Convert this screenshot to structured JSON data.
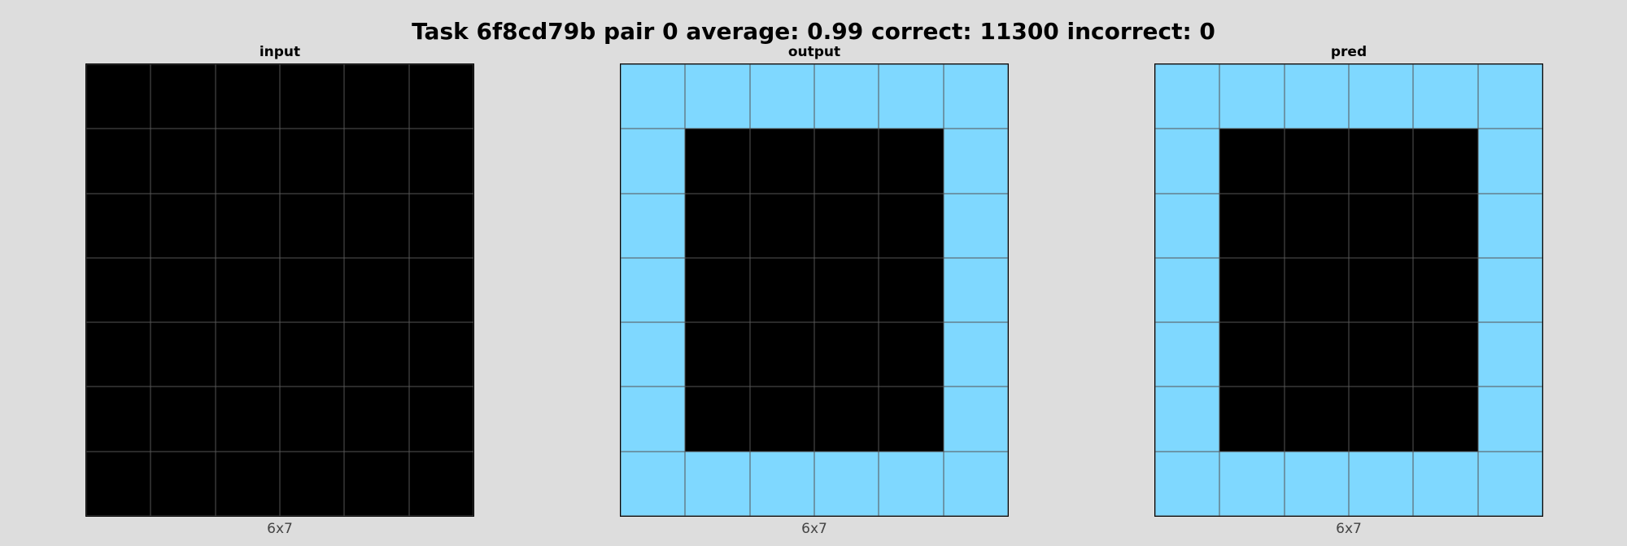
{
  "title": "Task 6f8cd79b pair 0 average: 0.99 correct: 11300 incorrect: 0",
  "colors": {
    "0": "#000000",
    "8": "#7fd8ff",
    "grid_line": "#555555",
    "background": "#dddddd"
  },
  "panels": [
    {
      "name": "input",
      "label": "input",
      "dims": "6x7",
      "grid": [
        [
          0,
          0,
          0,
          0,
          0,
          0
        ],
        [
          0,
          0,
          0,
          0,
          0,
          0
        ],
        [
          0,
          0,
          0,
          0,
          0,
          0
        ],
        [
          0,
          0,
          0,
          0,
          0,
          0
        ],
        [
          0,
          0,
          0,
          0,
          0,
          0
        ],
        [
          0,
          0,
          0,
          0,
          0,
          0
        ],
        [
          0,
          0,
          0,
          0,
          0,
          0
        ]
      ]
    },
    {
      "name": "output",
      "label": "output",
      "dims": "6x7",
      "grid": [
        [
          8,
          8,
          8,
          8,
          8,
          8
        ],
        [
          8,
          0,
          0,
          0,
          0,
          8
        ],
        [
          8,
          0,
          0,
          0,
          0,
          8
        ],
        [
          8,
          0,
          0,
          0,
          0,
          8
        ],
        [
          8,
          0,
          0,
          0,
          0,
          8
        ],
        [
          8,
          0,
          0,
          0,
          0,
          8
        ],
        [
          8,
          8,
          8,
          8,
          8,
          8
        ]
      ]
    },
    {
      "name": "pred",
      "label": "pred",
      "dims": "6x7",
      "grid": [
        [
          8,
          8,
          8,
          8,
          8,
          8
        ],
        [
          8,
          0,
          0,
          0,
          0,
          8
        ],
        [
          8,
          0,
          0,
          0,
          0,
          8
        ],
        [
          8,
          0,
          0,
          0,
          0,
          8
        ],
        [
          8,
          0,
          0,
          0,
          0,
          8
        ],
        [
          8,
          0,
          0,
          0,
          0,
          8
        ],
        [
          8,
          8,
          8,
          8,
          8,
          8
        ]
      ]
    }
  ]
}
